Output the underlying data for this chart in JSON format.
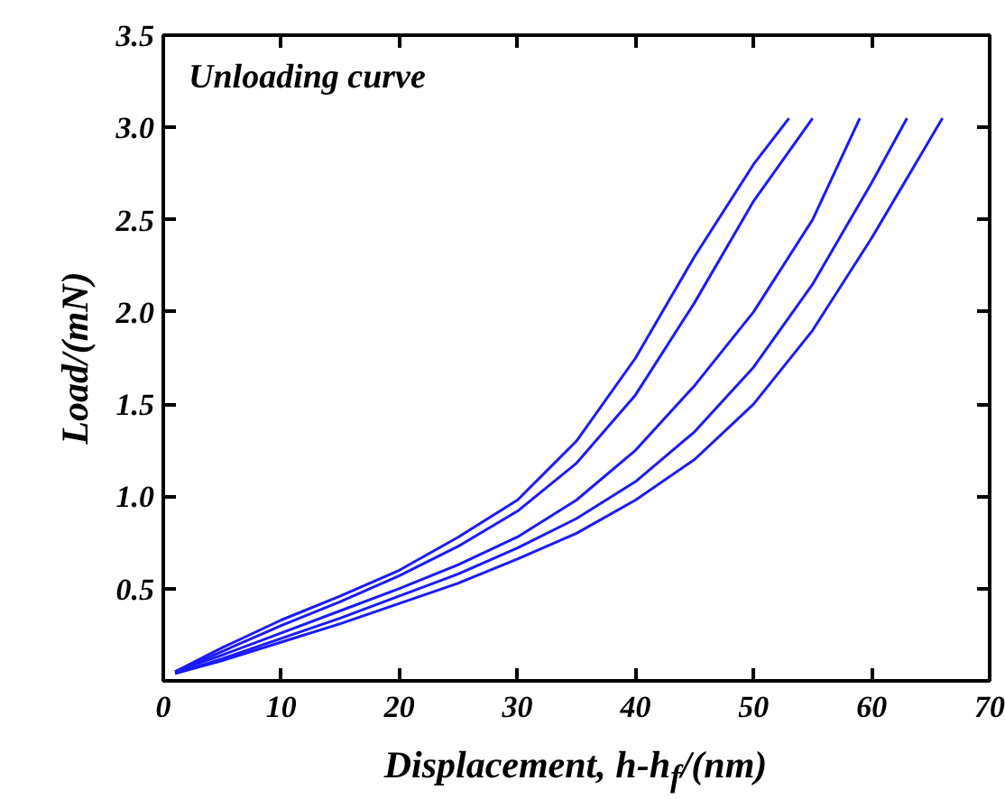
{
  "chart_data": {
    "type": "line",
    "xlabel": "Displacement, h-h$_{f}$/(nm)",
    "ylabel": "Load/(mN)",
    "annotations": [
      "Unloading curve"
    ],
    "xlim": [
      0,
      70
    ],
    "ylim": [
      0,
      3.5
    ],
    "xticks": [
      0,
      10,
      20,
      30,
      40,
      50,
      60,
      70
    ],
    "yticks": [
      {
        "value": 0,
        "label": null
      },
      0.5,
      {
        "value": 1,
        "label": "1.0"
      },
      1.5,
      {
        "value": 2,
        "label": "2.0"
      },
      2.5,
      {
        "value": 3,
        "label": "3.0"
      },
      3.5
    ],
    "grid": false,
    "marker": "none",
    "line_style": "solid",
    "series": [
      {
        "color": "#1a1aff",
        "x": [
          1,
          5,
          10,
          15,
          20,
          25,
          30,
          35,
          40,
          45,
          50,
          53
        ],
        "values": [
          0.05,
          0.18,
          0.33,
          0.46,
          0.6,
          0.78,
          0.98,
          1.3,
          1.75,
          2.3,
          2.8,
          3.05
        ]
      },
      {
        "color": "#1a1aff",
        "x": [
          1,
          5,
          10,
          15,
          20,
          25,
          30,
          35,
          40,
          45,
          50,
          55
        ],
        "values": [
          0.05,
          0.16,
          0.3,
          0.43,
          0.57,
          0.73,
          0.92,
          1.18,
          1.55,
          2.05,
          2.6,
          3.05
        ]
      },
      {
        "color": "#1a1aff",
        "x": [
          1,
          5,
          10,
          15,
          20,
          25,
          30,
          35,
          40,
          45,
          50,
          55,
          59
        ],
        "values": [
          0.05,
          0.14,
          0.26,
          0.38,
          0.5,
          0.63,
          0.78,
          0.98,
          1.25,
          1.6,
          2.0,
          2.5,
          3.05
        ]
      },
      {
        "color": "#1a1aff",
        "x": [
          1,
          5,
          10,
          15,
          20,
          25,
          30,
          35,
          40,
          45,
          50,
          55,
          60,
          63
        ],
        "values": [
          0.04,
          0.12,
          0.23,
          0.34,
          0.46,
          0.58,
          0.72,
          0.88,
          1.08,
          1.35,
          1.7,
          2.15,
          2.7,
          3.05
        ]
      },
      {
        "color": "#1a1aff",
        "x": [
          1,
          5,
          10,
          15,
          20,
          25,
          30,
          35,
          40,
          45,
          50,
          55,
          60,
          66
        ],
        "values": [
          0.04,
          0.11,
          0.21,
          0.31,
          0.42,
          0.53,
          0.66,
          0.8,
          0.98,
          1.2,
          1.5,
          1.9,
          2.4,
          3.05
        ]
      }
    ]
  }
}
